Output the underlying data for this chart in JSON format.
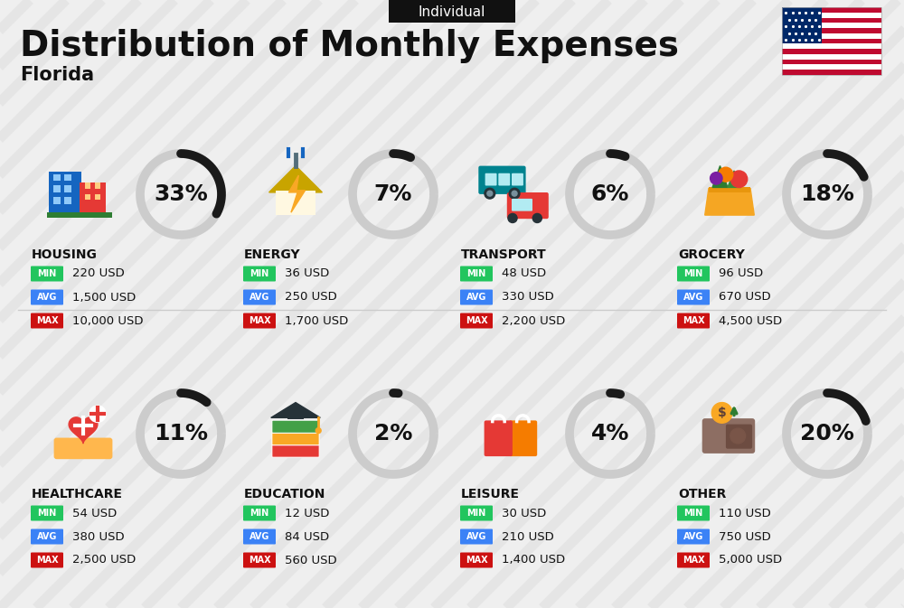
{
  "title": "Distribution of Monthly Expenses",
  "subtitle": "Florida",
  "tag": "Individual",
  "bg_color": "#efefef",
  "categories": [
    {
      "name": "HOUSING",
      "pct": 33,
      "min": "220 USD",
      "avg": "1,500 USD",
      "max": "10,000 USD",
      "icon": "housing",
      "col": 0,
      "row": 0
    },
    {
      "name": "ENERGY",
      "pct": 7,
      "min": "36 USD",
      "avg": "250 USD",
      "max": "1,700 USD",
      "icon": "energy",
      "col": 1,
      "row": 0
    },
    {
      "name": "TRANSPORT",
      "pct": 6,
      "min": "48 USD",
      "avg": "330 USD",
      "max": "2,200 USD",
      "icon": "transport",
      "col": 2,
      "row": 0
    },
    {
      "name": "GROCERY",
      "pct": 18,
      "min": "96 USD",
      "avg": "670 USD",
      "max": "4,500 USD",
      "icon": "grocery",
      "col": 3,
      "row": 0
    },
    {
      "name": "HEALTHCARE",
      "pct": 11,
      "min": "54 USD",
      "avg": "380 USD",
      "max": "2,500 USD",
      "icon": "healthcare",
      "col": 0,
      "row": 1
    },
    {
      "name": "EDUCATION",
      "pct": 2,
      "min": "12 USD",
      "avg": "84 USD",
      "max": "560 USD",
      "icon": "education",
      "col": 1,
      "row": 1
    },
    {
      "name": "LEISURE",
      "pct": 4,
      "min": "30 USD",
      "avg": "210 USD",
      "max": "1,400 USD",
      "icon": "leisure",
      "col": 2,
      "row": 1
    },
    {
      "name": "OTHER",
      "pct": 20,
      "min": "110 USD",
      "avg": "750 USD",
      "max": "5,000 USD",
      "icon": "other",
      "col": 3,
      "row": 1
    }
  ],
  "color_min": "#22c55e",
  "color_avg": "#3b82f6",
  "color_max": "#cc1111",
  "color_label_text": "#ffffff",
  "arc_color_active": "#1a1a1a",
  "arc_color_bg": "#cccccc",
  "title_fontsize": 28,
  "subtitle_fontsize": 15,
  "tag_fontsize": 11,
  "cat_fontsize": 10,
  "pct_fontsize": 18,
  "val_fontsize": 9.5
}
